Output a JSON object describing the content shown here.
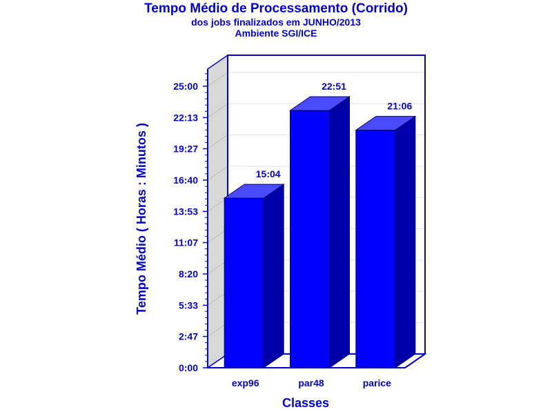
{
  "chart_data": {
    "type": "bar",
    "title": "Tempo Médio de Processamento (Corrido)",
    "subtitle": "dos jobs finalizados em JUNHO/2013",
    "subtitle2": "Ambiente SGI/ICE",
    "xlabel": "Classes",
    "ylabel": "Tempo Médio ( Horas : Minutos )",
    "categories": [
      "exp96",
      "par48",
      "parice"
    ],
    "values": [
      15.067,
      22.85,
      21.1
    ],
    "value_labels": [
      "15:04",
      "22:51",
      "21:06"
    ],
    "yticks": [
      0,
      2.783,
      5.55,
      8.333,
      11.117,
      13.883,
      16.667,
      19.45,
      22.217,
      25.0
    ],
    "ytick_labels": [
      "0:00",
      "2:47",
      "5:33",
      "8:20",
      "11:07",
      "13:53",
      "16:40",
      "19:27",
      "22:13",
      "25:00"
    ],
    "ylim": [
      0,
      25.0
    ],
    "grid": true,
    "three_d": true,
    "colors": {
      "bar_front": "#0000ff",
      "bar_top": "#4a4aff",
      "bar_side": "#0000a8",
      "axis": "#0000cc",
      "wall": "#d8d8d8",
      "text": "#0000cc"
    }
  }
}
